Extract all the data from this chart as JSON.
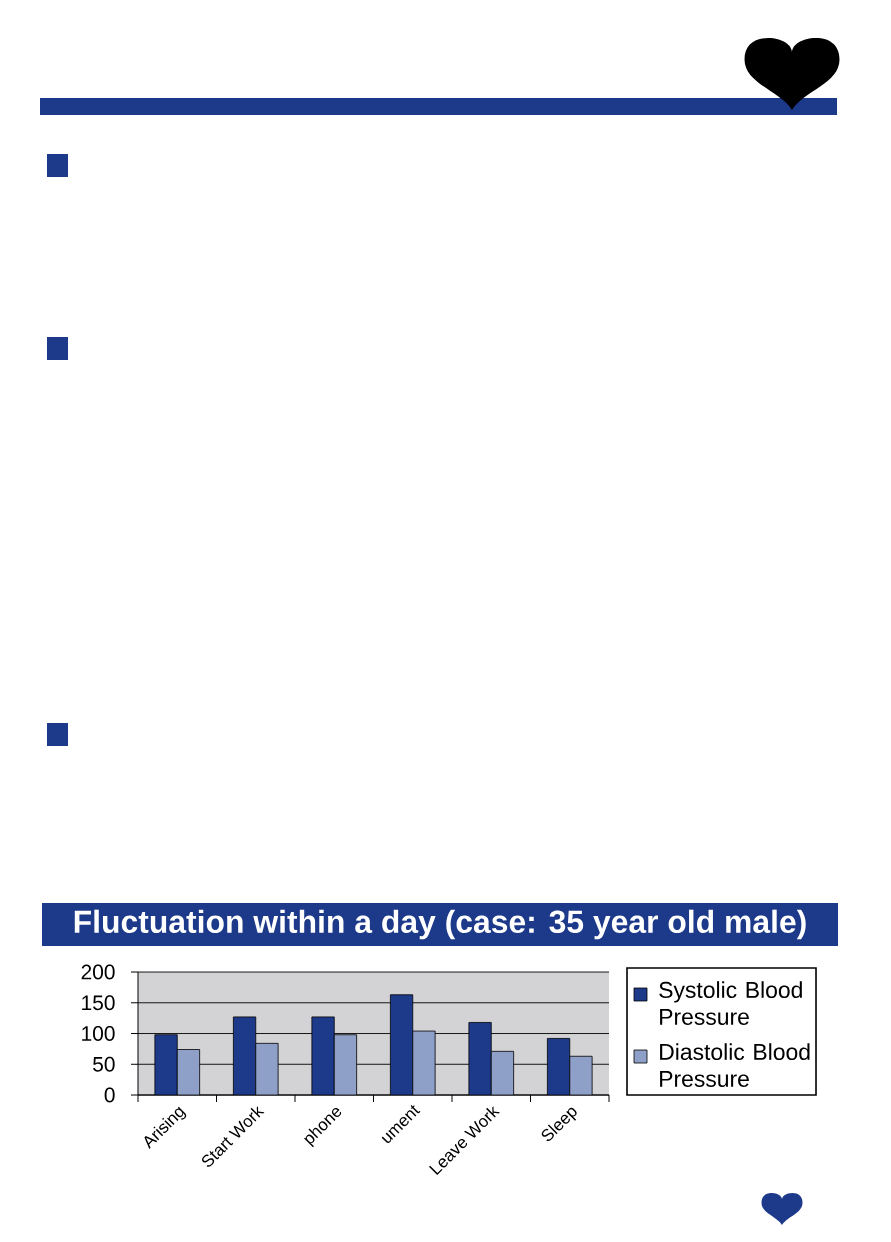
{
  "chart_data": {
    "type": "bar",
    "title": "Fluctuation within a day (case: 35 year old male)",
    "categories": [
      "Arising",
      "Start Work",
      "phone",
      "ument",
      "Leave Work",
      "Sleep"
    ],
    "series": [
      {
        "name": "Systolic Blood Pressure",
        "color": "#1d3a8a",
        "values": [
          98,
          127,
          127,
          163,
          118,
          92
        ]
      },
      {
        "name": "Diastolic Blood Pressure",
        "color": "#8e9fc8",
        "values": [
          74,
          84,
          98,
          104,
          71,
          63
        ]
      }
    ],
    "ylim": [
      0,
      200
    ],
    "yticks": [
      0,
      50,
      100,
      150,
      200
    ],
    "grid": "y",
    "legend": "right"
  }
}
